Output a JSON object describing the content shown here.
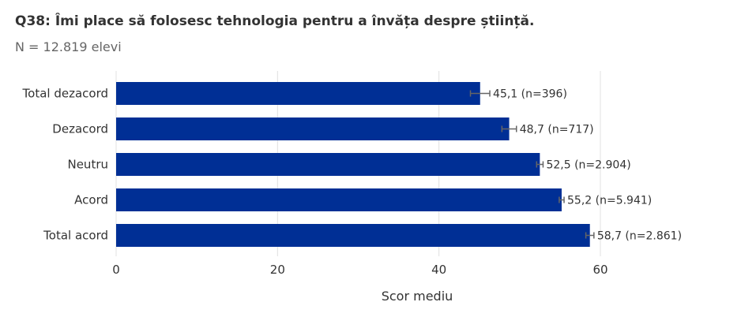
{
  "chart_data": {
    "type": "bar",
    "orientation": "horizontal",
    "title": "Q38: Îmi place să folosesc tehnologia pentru a învăța despre știință.",
    "subtitle": "N = 12.819 elevi",
    "categories": [
      "Total dezacord",
      "Dezacord",
      "Neutru",
      "Acord",
      "Total acord"
    ],
    "values": [
      45.1,
      48.7,
      52.5,
      55.2,
      58.7
    ],
    "error": [
      1.2,
      0.9,
      0.4,
      0.3,
      0.5
    ],
    "data_labels": [
      "45,1 (n=396)",
      "48,7 (n=717)",
      "52,5 (n=2.904)",
      "55,2 (n=5.941)",
      "58,7 (n=2.861)"
    ],
    "xlabel": "Scor mediu",
    "ylabel": "",
    "xlim": [
      0,
      74
    ],
    "xticks": [
      0,
      20,
      40,
      60
    ],
    "xtick_labels": [
      "0",
      "20",
      "40",
      "60"
    ],
    "grid": true,
    "colors": {
      "bar": "#002f95",
      "error_bar": "#666666",
      "grid": "#e0e0e0"
    }
  }
}
